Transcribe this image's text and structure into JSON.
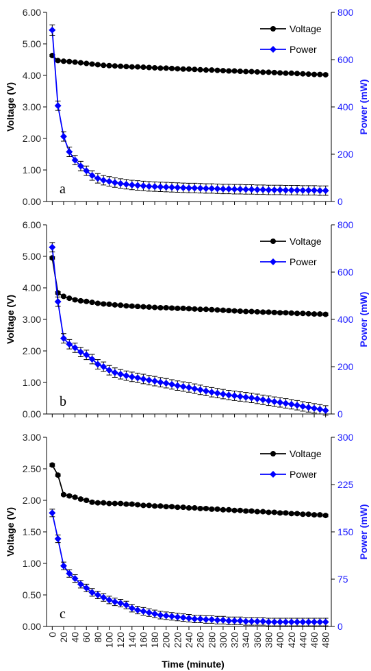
{
  "colors": {
    "voltage": "#000000",
    "power": "#0000ff",
    "right_axis": "#1a1aff"
  },
  "xlabel": "Time (minute)",
  "chart_data": [
    {
      "type": "line",
      "panel_label": "a",
      "x": [
        0,
        10,
        20,
        30,
        40,
        50,
        60,
        70,
        80,
        90,
        100,
        110,
        120,
        130,
        140,
        150,
        160,
        170,
        180,
        190,
        200,
        210,
        220,
        230,
        240,
        250,
        260,
        270,
        280,
        290,
        300,
        310,
        320,
        330,
        340,
        350,
        360,
        370,
        380,
        390,
        400,
        410,
        420,
        430,
        440,
        450,
        460,
        470,
        480
      ],
      "xlim": [
        -10,
        490
      ],
      "ylabel": "Voltage (V)",
      "y2label": "Power (mW)",
      "ylim": [
        0,
        6
      ],
      "y2lim": [
        0,
        800
      ],
      "yticks": [
        "0.00",
        "1.00",
        "2.00",
        "3.00",
        "4.00",
        "5.00",
        "6.00"
      ],
      "y2ticks": [
        "0",
        "200",
        "400",
        "600",
        "800"
      ],
      "legend": [
        "Voltage",
        "Power"
      ],
      "series": [
        {
          "name": "Voltage",
          "axis": "left",
          "values": [
            4.63,
            4.47,
            4.45,
            4.44,
            4.42,
            4.4,
            4.38,
            4.36,
            4.34,
            4.32,
            4.31,
            4.3,
            4.29,
            4.28,
            4.27,
            4.27,
            4.26,
            4.25,
            4.24,
            4.23,
            4.23,
            4.22,
            4.21,
            4.2,
            4.2,
            4.19,
            4.18,
            4.17,
            4.17,
            4.16,
            4.15,
            4.14,
            4.14,
            4.13,
            4.12,
            4.12,
            4.11,
            4.1,
            4.1,
            4.09,
            4.08,
            4.07,
            4.07,
            4.06,
            4.05,
            4.04,
            4.03,
            4.03,
            4.02
          ],
          "error": 0.03
        },
        {
          "name": "Power",
          "axis": "right",
          "values": [
            725,
            405,
            275,
            210,
            175,
            150,
            130,
            110,
            98,
            90,
            85,
            80,
            76,
            73,
            70,
            68,
            66,
            64,
            63,
            62,
            61,
            60,
            59,
            58,
            57,
            57,
            56,
            55,
            55,
            54,
            53,
            53,
            52,
            52,
            51,
            51,
            50,
            50,
            49,
            49,
            49,
            48,
            48,
            48,
            47,
            47,
            47,
            46,
            46
          ],
          "error": [
            22,
            20,
            20,
            20,
            20,
            20,
            20,
            20,
            20,
            20,
            20,
            20,
            20,
            20,
            20,
            20,
            20,
            20,
            20,
            20,
            20,
            20,
            20,
            20,
            20,
            20,
            20,
            20,
            20,
            20,
            20,
            20,
            20,
            20,
            20,
            20,
            20,
            20,
            20,
            20,
            20,
            20,
            20,
            20,
            20,
            20,
            20,
            20,
            20
          ]
        }
      ]
    },
    {
      "type": "line",
      "panel_label": "b",
      "x": [
        0,
        10,
        20,
        30,
        40,
        50,
        60,
        70,
        80,
        90,
        100,
        110,
        120,
        130,
        140,
        150,
        160,
        170,
        180,
        190,
        200,
        210,
        220,
        230,
        240,
        250,
        260,
        270,
        280,
        290,
        300,
        310,
        320,
        330,
        340,
        350,
        360,
        370,
        380,
        390,
        400,
        410,
        420,
        430,
        440,
        450,
        460,
        470,
        480
      ],
      "xlim": [
        -10,
        490
      ],
      "ylabel": "Voltage (V)",
      "y2label": "Power (mW)",
      "ylim": [
        0,
        6
      ],
      "y2lim": [
        0,
        800
      ],
      "yticks": [
        "0.00",
        "1.00",
        "2.00",
        "3.00",
        "4.00",
        "5.00",
        "6.00"
      ],
      "y2ticks": [
        "0",
        "200",
        "400",
        "600",
        "800"
      ],
      "legend": [
        "Voltage",
        "Power"
      ],
      "series": [
        {
          "name": "Voltage",
          "axis": "left",
          "values": [
            4.95,
            3.84,
            3.73,
            3.67,
            3.62,
            3.59,
            3.57,
            3.54,
            3.51,
            3.49,
            3.48,
            3.46,
            3.45,
            3.43,
            3.42,
            3.41,
            3.4,
            3.39,
            3.38,
            3.37,
            3.37,
            3.36,
            3.35,
            3.35,
            3.34,
            3.33,
            3.32,
            3.32,
            3.31,
            3.3,
            3.29,
            3.28,
            3.27,
            3.26,
            3.25,
            3.25,
            3.24,
            3.23,
            3.23,
            3.22,
            3.21,
            3.21,
            3.2,
            3.19,
            3.19,
            3.18,
            3.17,
            3.17,
            3.16
          ],
          "error": 0.04
        },
        {
          "name": "Power",
          "axis": "right",
          "values": [
            705,
            475,
            320,
            295,
            280,
            262,
            250,
            232,
            210,
            200,
            185,
            175,
            168,
            162,
            157,
            153,
            148,
            143,
            139,
            134,
            130,
            125,
            120,
            116,
            112,
            107,
            102,
            97,
            92,
            88,
            84,
            80,
            77,
            74,
            71,
            68,
            64,
            60,
            56,
            52,
            49,
            45,
            41,
            37,
            32,
            28,
            24,
            20,
            15
          ],
          "error": 20
        }
      ]
    },
    {
      "type": "line",
      "panel_label": "c",
      "x": [
        0,
        10,
        20,
        30,
        40,
        50,
        60,
        70,
        80,
        90,
        100,
        110,
        120,
        130,
        140,
        150,
        160,
        170,
        180,
        190,
        200,
        210,
        220,
        230,
        240,
        250,
        260,
        270,
        280,
        290,
        300,
        310,
        320,
        330,
        340,
        350,
        360,
        370,
        380,
        390,
        400,
        410,
        420,
        430,
        440,
        450,
        460,
        470,
        480
      ],
      "xlim": [
        -10,
        490
      ],
      "ylabel": "Voltage (V)",
      "y2label": "Power (mW)",
      "ylim": [
        0,
        3
      ],
      "y2lim": [
        0,
        300
      ],
      "yticks": [
        "0.00",
        "0.50",
        "1.00",
        "1.50",
        "2.00",
        "2.50",
        "3.00"
      ],
      "y2ticks": [
        "0",
        "75",
        "150",
        "225",
        "300"
      ],
      "xticks": [
        "0",
        "20",
        "40",
        "60",
        "80",
        "100",
        "120",
        "140",
        "160",
        "180",
        "200",
        "220",
        "240",
        "260",
        "280",
        "300",
        "320",
        "340",
        "360",
        "380",
        "400",
        "420",
        "440",
        "460",
        "480"
      ],
      "xlabel": "Time (minute)",
      "legend": [
        "Voltage",
        "Power"
      ],
      "series": [
        {
          "name": "Voltage",
          "axis": "left",
          "values": [
            2.56,
            2.4,
            2.09,
            2.07,
            2.05,
            2.02,
            2.0,
            1.97,
            1.96,
            1.96,
            1.95,
            1.95,
            1.95,
            1.94,
            1.94,
            1.93,
            1.92,
            1.92,
            1.91,
            1.91,
            1.9,
            1.9,
            1.89,
            1.89,
            1.88,
            1.88,
            1.87,
            1.87,
            1.86,
            1.86,
            1.85,
            1.85,
            1.84,
            1.84,
            1.83,
            1.83,
            1.82,
            1.82,
            1.81,
            1.81,
            1.8,
            1.8,
            1.79,
            1.79,
            1.78,
            1.78,
            1.77,
            1.77,
            1.76
          ],
          "error": 0.02
        },
        {
          "name": "Power",
          "axis": "right",
          "values": [
            180,
            139,
            96,
            84,
            76,
            67,
            61,
            54,
            50,
            46,
            42,
            39,
            37,
            34,
            29,
            26,
            24,
            22,
            20,
            18,
            17,
            16,
            15,
            14,
            13,
            12,
            12,
            11,
            11,
            10,
            10,
            9,
            9,
            9,
            8,
            8,
            8,
            8,
            7,
            7,
            7,
            7,
            7,
            7,
            7,
            7,
            7,
            7,
            7
          ],
          "error": 6
        }
      ]
    }
  ]
}
